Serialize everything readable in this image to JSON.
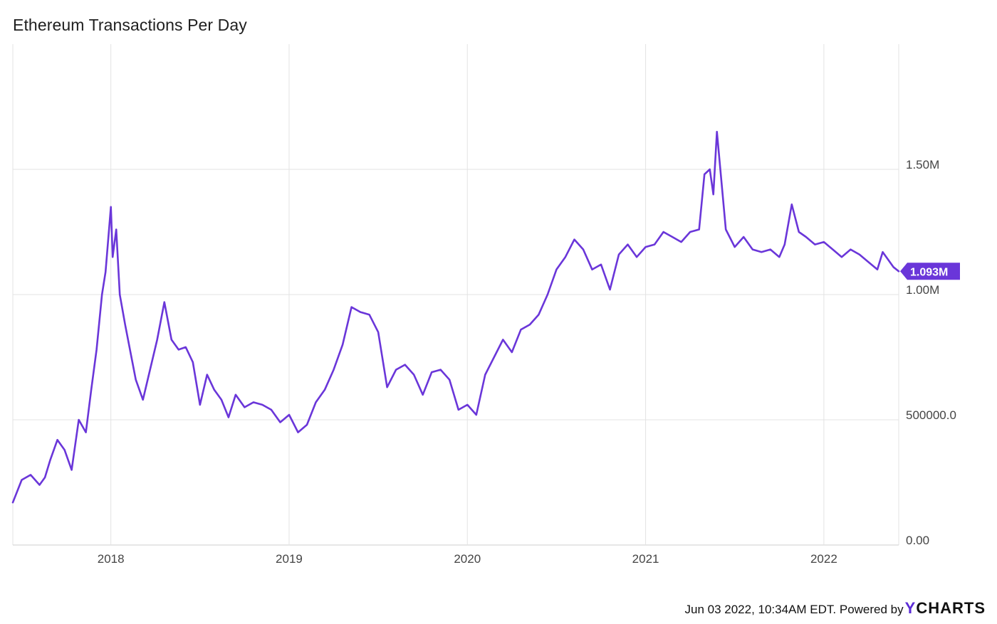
{
  "title": "Ethereum Transactions Per Day",
  "footer": {
    "timestamp": "Jun 03 2022, 10:34AM EDT.",
    "powered_by": "Powered by",
    "brand_y": "Y",
    "brand_rest": "CHARTS"
  },
  "colors": {
    "series": "#6a36d9",
    "grid": "#e3e3e3",
    "label_bg": "#6a36d9"
  },
  "chart_data": {
    "type": "line",
    "title": "Ethereum Transactions Per Day",
    "xlabel": "",
    "ylabel": "",
    "xlim": [
      2017.45,
      2022.42
    ],
    "ylim": [
      0,
      2000000
    ],
    "grid": true,
    "legend": "none",
    "x_ticks": [
      2018,
      2019,
      2020,
      2021,
      2022
    ],
    "x_tick_labels": [
      "2018",
      "2019",
      "2020",
      "2021",
      "2022"
    ],
    "y_ticks": [
      0,
      500000,
      1000000,
      1500000
    ],
    "y_tick_labels": [
      "0.00",
      "500000.0",
      "1.00M",
      "1.50M"
    ],
    "last_value": 1093000,
    "last_value_label": "1.093M",
    "series": [
      {
        "x": [
          2017.45,
          2017.5,
          2017.55,
          2017.6,
          2017.63,
          2017.66,
          2017.7,
          2017.74,
          2017.78,
          2017.82,
          2017.86,
          2017.89,
          2017.92,
          2017.95,
          2017.97,
          2018.0,
          2018.01,
          2018.03,
          2018.05,
          2018.08,
          2018.11,
          2018.14,
          2018.18,
          2018.22,
          2018.26,
          2018.3,
          2018.34,
          2018.38,
          2018.42,
          2018.46,
          2018.5,
          2018.54,
          2018.58,
          2018.62,
          2018.66,
          2018.7,
          2018.75,
          2018.8,
          2018.85,
          2018.9,
          2018.95,
          2019.0,
          2019.05,
          2019.1,
          2019.15,
          2019.2,
          2019.25,
          2019.3,
          2019.35,
          2019.4,
          2019.45,
          2019.5,
          2019.55,
          2019.6,
          2019.65,
          2019.7,
          2019.75,
          2019.8,
          2019.85,
          2019.9,
          2019.95,
          2020.0,
          2020.05,
          2020.1,
          2020.15,
          2020.2,
          2020.25,
          2020.3,
          2020.35,
          2020.4,
          2020.45,
          2020.5,
          2020.55,
          2020.6,
          2020.65,
          2020.7,
          2020.75,
          2020.8,
          2020.85,
          2020.9,
          2020.95,
          2021.0,
          2021.05,
          2021.1,
          2021.15,
          2021.2,
          2021.25,
          2021.3,
          2021.33,
          2021.36,
          2021.38,
          2021.4,
          2021.45,
          2021.5,
          2021.55,
          2021.6,
          2021.65,
          2021.7,
          2021.75,
          2021.78,
          2021.82,
          2021.86,
          2021.9,
          2021.95,
          2022.0,
          2022.05,
          2022.1,
          2022.15,
          2022.2,
          2022.25,
          2022.3,
          2022.33,
          2022.36,
          2022.39,
          2022.42
        ],
        "y": [
          170000,
          260000,
          280000,
          240000,
          270000,
          340000,
          420000,
          380000,
          300000,
          500000,
          450000,
          620000,
          780000,
          1000000,
          1090000,
          1350000,
          1150000,
          1260000,
          1000000,
          880000,
          770000,
          660000,
          580000,
          700000,
          820000,
          970000,
          820000,
          780000,
          790000,
          730000,
          560000,
          680000,
          620000,
          580000,
          510000,
          600000,
          550000,
          570000,
          560000,
          540000,
          490000,
          520000,
          450000,
          480000,
          570000,
          620000,
          700000,
          800000,
          950000,
          930000,
          920000,
          850000,
          630000,
          700000,
          720000,
          680000,
          600000,
          690000,
          700000,
          660000,
          540000,
          560000,
          520000,
          680000,
          750000,
          820000,
          770000,
          860000,
          880000,
          920000,
          1000000,
          1100000,
          1150000,
          1220000,
          1180000,
          1100000,
          1120000,
          1020000,
          1160000,
          1200000,
          1150000,
          1190000,
          1200000,
          1250000,
          1230000,
          1210000,
          1250000,
          1260000,
          1480000,
          1500000,
          1400000,
          1650000,
          1260000,
          1190000,
          1230000,
          1180000,
          1170000,
          1180000,
          1150000,
          1200000,
          1360000,
          1250000,
          1230000,
          1200000,
          1210000,
          1180000,
          1150000,
          1180000,
          1160000,
          1130000,
          1100000,
          1170000,
          1140000,
          1110000,
          1093000
        ]
      }
    ]
  }
}
